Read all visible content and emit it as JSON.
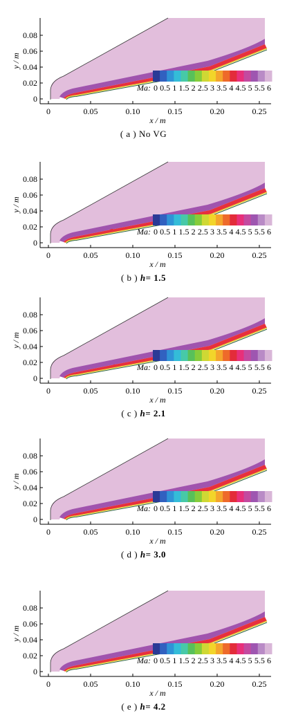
{
  "figure": {
    "colorbar": {
      "title": "Ma",
      "ticks": [
        "0",
        "0.5",
        "1",
        "1.5",
        "2",
        "2.5",
        "3",
        "3.5",
        "4",
        "4.5",
        "5",
        "5.5",
        "6"
      ],
      "range": [
        0,
        6
      ]
    },
    "x_axis": {
      "label": "x / m",
      "ticks": [
        "0",
        "0.05",
        "0.10",
        "0.15",
        "0.20",
        "0.25"
      ],
      "range": [
        -0.005,
        0.268
      ]
    },
    "y_axis": {
      "label": "y / m",
      "ticks": [
        "0",
        "0.02",
        "0.04",
        "0.06",
        "0.08"
      ],
      "range": [
        -0.005,
        0.085
      ]
    },
    "colors": {
      "freestream": "#e2bedc",
      "post_shock": "#a054ae",
      "hot": "#e8303c",
      "boundary": "#2a6040"
    },
    "panels": [
      {
        "caption_prefix": "( a )",
        "caption_label": "No VG",
        "caption_value": ""
      },
      {
        "caption_prefix": "( b )",
        "caption_label": "h",
        "caption_value": "= 1.5"
      },
      {
        "caption_prefix": "( c )",
        "caption_label": "h",
        "caption_value": "= 2.1"
      },
      {
        "caption_prefix": "( d )",
        "caption_label": "h",
        "caption_value": "= 3.0"
      },
      {
        "caption_prefix": "( e )",
        "caption_label": "h",
        "caption_value": "= 4.2"
      }
    ]
  }
}
